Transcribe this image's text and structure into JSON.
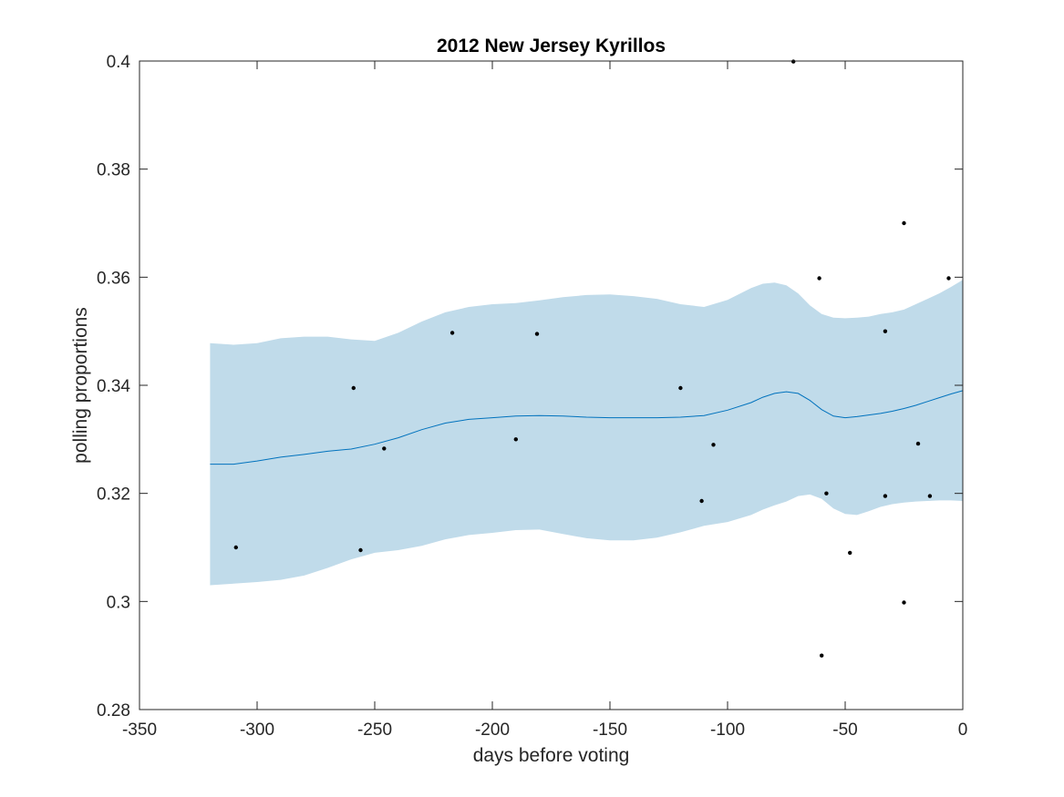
{
  "chart_data": {
    "type": "line",
    "title": "2012 New Jersey Kyrillos",
    "xlabel": "days before voting",
    "ylabel": "polling proportions",
    "xlim": [
      -350,
      0
    ],
    "ylim": [
      0.28,
      0.4
    ],
    "xticks": [
      -350,
      -300,
      -250,
      -200,
      -150,
      -100,
      -50,
      0
    ],
    "xtick_labels": [
      "-350",
      "-300",
      "-250",
      "-200",
      "-150",
      "-100",
      "-50",
      "0"
    ],
    "yticks": [
      0.28,
      0.3,
      0.32,
      0.34,
      0.36,
      0.38,
      0.4
    ],
    "ytick_labels": [
      "0.28",
      "0.3",
      "0.32",
      "0.34",
      "0.36",
      "0.38",
      "0.4"
    ],
    "grid": false,
    "colors": {
      "band": "#c0dbea",
      "trend": "#0072bd",
      "points": "#000000",
      "axes": "#262626"
    },
    "trend": {
      "x": [
        -320,
        -310,
        -300,
        -290,
        -280,
        -270,
        -260,
        -250,
        -240,
        -230,
        -220,
        -210,
        -200,
        -190,
        -180,
        -170,
        -160,
        -150,
        -140,
        -130,
        -120,
        -110,
        -100,
        -90,
        -85,
        -80,
        -75,
        -70,
        -65,
        -60,
        -55,
        -50,
        -45,
        -40,
        -35,
        -30,
        -25,
        -20,
        -15,
        -10,
        -5,
        0
      ],
      "mean": [
        0.3254,
        0.3254,
        0.326,
        0.3267,
        0.3272,
        0.3278,
        0.3282,
        0.3291,
        0.3303,
        0.3318,
        0.333,
        0.3337,
        0.334,
        0.3343,
        0.3344,
        0.3343,
        0.3341,
        0.334,
        0.334,
        0.334,
        0.3341,
        0.3344,
        0.3354,
        0.3368,
        0.3378,
        0.3385,
        0.3388,
        0.3385,
        0.3372,
        0.3355,
        0.3343,
        0.334,
        0.3342,
        0.3345,
        0.3348,
        0.3352,
        0.3357,
        0.3363,
        0.337,
        0.3377,
        0.3384,
        0.339
      ],
      "upper": [
        0.3478,
        0.3475,
        0.3478,
        0.3487,
        0.349,
        0.349,
        0.3485,
        0.3482,
        0.3497,
        0.3518,
        0.3535,
        0.3545,
        0.355,
        0.3552,
        0.3557,
        0.3563,
        0.3567,
        0.3568,
        0.3565,
        0.356,
        0.355,
        0.3545,
        0.3558,
        0.358,
        0.3588,
        0.359,
        0.3585,
        0.357,
        0.3548,
        0.3532,
        0.3525,
        0.3524,
        0.3525,
        0.3527,
        0.3532,
        0.3535,
        0.354,
        0.355,
        0.356,
        0.357,
        0.3582,
        0.3595
      ],
      "lower": [
        0.303,
        0.3033,
        0.3036,
        0.304,
        0.3048,
        0.3062,
        0.3078,
        0.309,
        0.3095,
        0.3103,
        0.3115,
        0.3123,
        0.3127,
        0.3132,
        0.3133,
        0.3125,
        0.3117,
        0.3113,
        0.3113,
        0.3118,
        0.3128,
        0.314,
        0.3147,
        0.316,
        0.317,
        0.3178,
        0.3185,
        0.3195,
        0.3198,
        0.319,
        0.3172,
        0.3162,
        0.316,
        0.3167,
        0.3175,
        0.318,
        0.3183,
        0.3185,
        0.3186,
        0.3187,
        0.3187,
        0.3186
      ]
    },
    "points": [
      {
        "x": -309,
        "y": 0.31
      },
      {
        "x": -259,
        "y": 0.3395
      },
      {
        "x": -256,
        "y": 0.3095
      },
      {
        "x": -246,
        "y": 0.3283
      },
      {
        "x": -217,
        "y": 0.3497
      },
      {
        "x": -190,
        "y": 0.33
      },
      {
        "x": -181,
        "y": 0.3495
      },
      {
        "x": -120,
        "y": 0.3395
      },
      {
        "x": -111,
        "y": 0.3186
      },
      {
        "x": -106,
        "y": 0.329
      },
      {
        "x": -72,
        "y": 0.3999
      },
      {
        "x": -61,
        "y": 0.3598
      },
      {
        "x": -60,
        "y": 0.29
      },
      {
        "x": -58,
        "y": 0.32
      },
      {
        "x": -48,
        "y": 0.309
      },
      {
        "x": -33,
        "y": 0.35
      },
      {
        "x": -33,
        "y": 0.3195
      },
      {
        "x": -25,
        "y": 0.37
      },
      {
        "x": -25,
        "y": 0.2998
      },
      {
        "x": -19,
        "y": 0.3292
      },
      {
        "x": -14,
        "y": 0.3195
      },
      {
        "x": -6,
        "y": 0.3598
      }
    ]
  }
}
